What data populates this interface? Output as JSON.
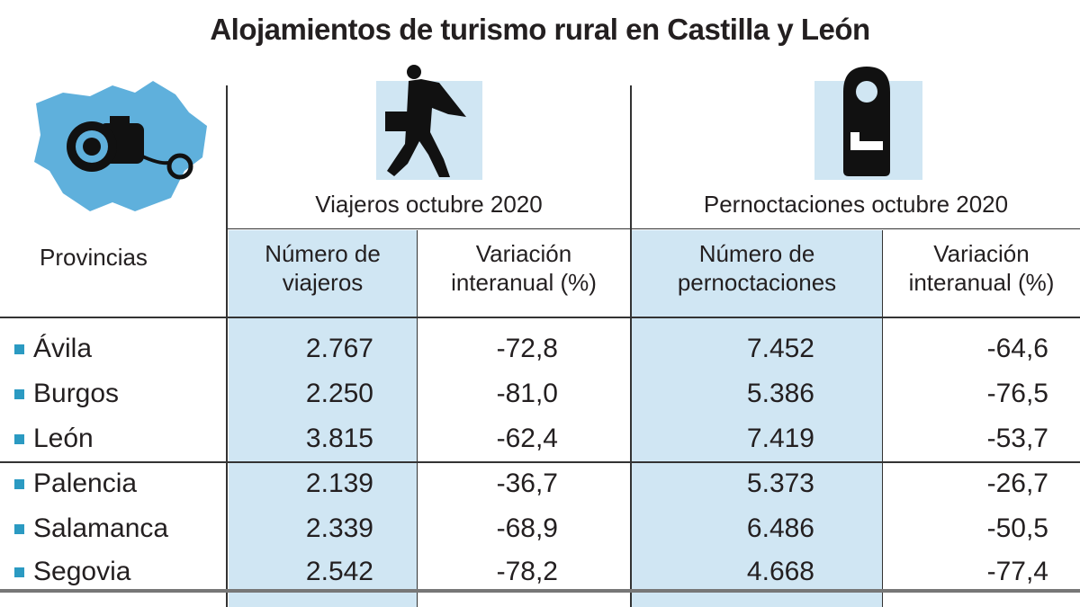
{
  "title": "Alojamientos de turismo rural en Castilla y León",
  "groups": {
    "viajeros": "Viajeros octubre 2020",
    "pernoctaciones": "Pernoctaciones octubre 2020"
  },
  "headers": {
    "provincias": "Provincias",
    "num_viajeros": [
      "Número de",
      "viajeros"
    ],
    "var_viajeros": [
      "Variación",
      "interanual (%)"
    ],
    "num_pernoctaciones": [
      "Número de",
      "pernoctaciones"
    ],
    "var_pernoctaciones": [
      "Variación",
      "interanual (%)"
    ]
  },
  "icons": {
    "map": "castilla-leon-map-camera-icon",
    "viajeros": "traveler-icon",
    "pernoctaciones": "door-hanger-bed-icon"
  },
  "colors": {
    "highlight": "#d0e6f3",
    "bullet": "#2b9ac2"
  },
  "chart_data": {
    "type": "table",
    "title": "Alojamientos de turismo rural en Castilla y León",
    "columns": [
      "Provincias",
      "Número de viajeros",
      "Variación interanual (%)",
      "Número de pernoctaciones",
      "Variación interanual (%)"
    ],
    "rows": [
      [
        "Ávila",
        "2.767",
        "-72,8",
        "7.452",
        "-64,6"
      ],
      [
        "Burgos",
        "2.250",
        "-81,0",
        "5.386",
        "-76,5"
      ],
      [
        "León",
        "3.815",
        "-62,4",
        "7.419",
        "-53,7"
      ],
      [
        "Palencia",
        "2.139",
        "-36,7",
        "5.373",
        "-26,7"
      ],
      [
        "Salamanca",
        "2.339",
        "-68,9",
        "6.486",
        "-50,5"
      ],
      [
        "Segovia",
        "2.542",
        "-78,2",
        "4.668",
        "-77,4"
      ]
    ]
  }
}
